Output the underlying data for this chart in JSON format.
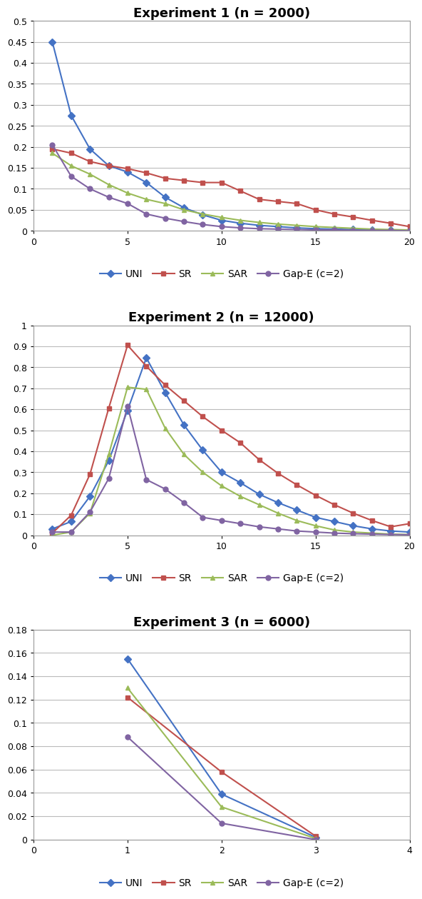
{
  "exp1": {
    "title": "Experiment 1 (n = 2000)",
    "xlim": [
      0,
      20
    ],
    "ylim": [
      0,
      0.5
    ],
    "yticks": [
      0,
      0.05,
      0.1,
      0.15,
      0.2,
      0.25,
      0.3,
      0.35,
      0.4,
      0.45,
      0.5
    ],
    "yticklabels": [
      "0",
      "0.05",
      "0.1",
      "0.15",
      "0.2",
      "0.25",
      "0.3",
      "0.35",
      "0.4",
      "0.45",
      "0.5"
    ],
    "xticks": [
      0,
      5,
      10,
      15,
      20
    ],
    "UNI": {
      "x": [
        1,
        2,
        3,
        4,
        5,
        6,
        7,
        8,
        9,
        10,
        11,
        12,
        13,
        14,
        15,
        16,
        17,
        18,
        19,
        20
      ],
      "y": [
        0.45,
        0.275,
        0.195,
        0.155,
        0.14,
        0.115,
        0.08,
        0.055,
        0.038,
        0.025,
        0.018,
        0.013,
        0.01,
        0.007,
        0.005,
        0.004,
        0.003,
        0.002,
        0.002,
        0.001
      ]
    },
    "SR": {
      "x": [
        1,
        2,
        3,
        4,
        5,
        6,
        7,
        8,
        9,
        10,
        11,
        12,
        13,
        14,
        15,
        16,
        17,
        18,
        19,
        20
      ],
      "y": [
        0.195,
        0.185,
        0.165,
        0.155,
        0.148,
        0.138,
        0.125,
        0.12,
        0.115,
        0.115,
        0.095,
        0.075,
        0.07,
        0.065,
        0.05,
        0.04,
        0.033,
        0.025,
        0.018,
        0.01
      ]
    },
    "SAR": {
      "x": [
        1,
        2,
        3,
        4,
        5,
        6,
        7,
        8,
        9,
        10,
        11,
        12,
        13,
        14,
        15,
        16,
        17,
        18,
        19,
        20
      ],
      "y": [
        0.185,
        0.155,
        0.135,
        0.11,
        0.09,
        0.075,
        0.065,
        0.05,
        0.04,
        0.032,
        0.025,
        0.02,
        0.016,
        0.013,
        0.01,
        0.008,
        0.006,
        0.004,
        0.003,
        0.002
      ]
    },
    "GapE": {
      "x": [
        1,
        2,
        3,
        4,
        5,
        6,
        7,
        8,
        9,
        10,
        11,
        12,
        13,
        14,
        15,
        16,
        17,
        18,
        19,
        20
      ],
      "y": [
        0.205,
        0.13,
        0.1,
        0.08,
        0.065,
        0.04,
        0.03,
        0.022,
        0.015,
        0.01,
        0.007,
        0.005,
        0.004,
        0.003,
        0.002,
        0.002,
        0.001,
        0.001,
        0.001,
        0.0
      ]
    }
  },
  "exp2": {
    "title": "Experiment 2 (n = 12000)",
    "xlim": [
      0,
      20
    ],
    "ylim": [
      0,
      1.0
    ],
    "yticks": [
      0,
      0.1,
      0.2,
      0.3,
      0.4,
      0.5,
      0.6,
      0.7,
      0.8,
      0.9,
      1.0
    ],
    "yticklabels": [
      "0",
      "0.1",
      "0.2",
      "0.3",
      "0.4",
      "0.5",
      "0.6",
      "0.7",
      "0.8",
      "0.9",
      "1"
    ],
    "xticks": [
      0,
      5,
      10,
      15,
      20
    ],
    "UNI": {
      "x": [
        1,
        2,
        3,
        4,
        5,
        6,
        7,
        8,
        9,
        10,
        11,
        12,
        13,
        14,
        15,
        16,
        17,
        18,
        19,
        20
      ],
      "y": [
        0.03,
        0.065,
        0.185,
        0.355,
        0.595,
        0.845,
        0.68,
        0.525,
        0.405,
        0.3,
        0.25,
        0.195,
        0.155,
        0.12,
        0.085,
        0.065,
        0.045,
        0.03,
        0.02,
        0.015
      ]
    },
    "SR": {
      "x": [
        1,
        2,
        3,
        4,
        5,
        6,
        7,
        8,
        9,
        10,
        11,
        12,
        13,
        14,
        15,
        16,
        17,
        18,
        19,
        20
      ],
      "y": [
        0.01,
        0.095,
        0.29,
        0.605,
        0.905,
        0.805,
        0.715,
        0.64,
        0.565,
        0.5,
        0.44,
        0.36,
        0.295,
        0.24,
        0.19,
        0.145,
        0.105,
        0.07,
        0.04,
        0.055
      ]
    },
    "SAR": {
      "x": [
        1,
        2,
        3,
        4,
        5,
        6,
        7,
        8,
        9,
        10,
        11,
        12,
        13,
        14,
        15,
        16,
        17,
        18,
        19,
        20
      ],
      "y": [
        0.0,
        0.015,
        0.105,
        0.385,
        0.705,
        0.695,
        0.51,
        0.385,
        0.3,
        0.235,
        0.185,
        0.145,
        0.105,
        0.07,
        0.045,
        0.025,
        0.015,
        0.01,
        0.005,
        0.003
      ]
    },
    "GapE": {
      "x": [
        1,
        2,
        3,
        4,
        5,
        6,
        7,
        8,
        9,
        10,
        11,
        12,
        13,
        14,
        15,
        16,
        17,
        18,
        19,
        20
      ],
      "y": [
        0.015,
        0.015,
        0.11,
        0.27,
        0.615,
        0.265,
        0.22,
        0.155,
        0.085,
        0.07,
        0.055,
        0.04,
        0.03,
        0.02,
        0.015,
        0.01,
        0.007,
        0.005,
        0.003,
        0.002
      ]
    }
  },
  "exp3": {
    "title": "Experiment 3 (n = 6000)",
    "xlim": [
      0,
      4
    ],
    "ylim": [
      0,
      0.18
    ],
    "yticks": [
      0,
      0.02,
      0.04,
      0.06,
      0.08,
      0.1,
      0.12,
      0.14,
      0.16,
      0.18
    ],
    "yticklabels": [
      "0",
      "0.02",
      "0.04",
      "0.06",
      "0.08",
      "0.1",
      "0.12",
      "0.14",
      "0.16",
      "0.18"
    ],
    "xticks": [
      0,
      1,
      2,
      3,
      4
    ],
    "UNI": {
      "x": [
        1,
        2,
        3
      ],
      "y": [
        0.155,
        0.039,
        0.002
      ]
    },
    "SR": {
      "x": [
        1,
        2,
        3
      ],
      "y": [
        0.122,
        0.058,
        0.003
      ]
    },
    "SAR": {
      "x": [
        1,
        2,
        3
      ],
      "y": [
        0.13,
        0.028,
        0.001
      ]
    },
    "GapE": {
      "x": [
        1,
        2,
        3
      ],
      "y": [
        0.088,
        0.014,
        0.0
      ]
    }
  },
  "colors": {
    "UNI": "#4472C4",
    "SR": "#C0504D",
    "SAR": "#9BBB59",
    "GapE": "#8064A2"
  },
  "markers": {
    "UNI": "D",
    "SR": "s",
    "SAR": "^",
    "GapE": "o"
  },
  "legend_labels": {
    "UNI": "UNI",
    "SR": "SR",
    "SAR": "SAR",
    "GapE": "Gap-E (c=2)"
  },
  "bg_color": "#FFFFFF",
  "grid_color": "#BBBBBB",
  "title_fontsize": 13,
  "legend_fontsize": 10,
  "tick_fontsize": 9,
  "linewidth": 1.5,
  "markersize": 5
}
